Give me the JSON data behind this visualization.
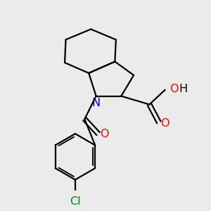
{
  "bg_color": "#ebebeb",
  "bond_color": "#000000",
  "n_color": "#0000cc",
  "o_color": "#ff0000",
  "cl_color": "#008800",
  "line_width": 1.6,
  "fig_width": 3.0,
  "fig_height": 3.0,
  "dpi": 100,
  "xlim": [
    0,
    10
  ],
  "ylim": [
    0,
    10
  ]
}
